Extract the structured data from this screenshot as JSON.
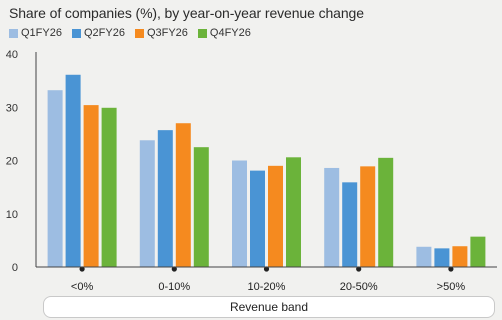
{
  "chart_data": {
    "type": "bar",
    "title": "Share of companies (%), by year-on-year revenue change",
    "xlabel": "Revenue band",
    "ylabel": "",
    "categories": [
      "<0%",
      "0-10%",
      "10-20%",
      "20-50%",
      ">50%"
    ],
    "series": [
      {
        "name": "Q1FY26",
        "color": "#9dbde2",
        "values": [
          33.2,
          23.8,
          20.0,
          18.6,
          3.8
        ]
      },
      {
        "name": "Q2FY26",
        "color": "#4a94d4",
        "values": [
          36.1,
          25.7,
          18.1,
          15.9,
          3.5
        ]
      },
      {
        "name": "Q3FY26",
        "color": "#f58a1f",
        "values": [
          30.4,
          27.0,
          19.0,
          18.9,
          3.9
        ]
      },
      {
        "name": "Q4FY26",
        "color": "#6bb33a",
        "values": [
          29.9,
          22.5,
          20.6,
          20.5,
          5.7
        ]
      }
    ],
    "yticks": [
      0,
      10,
      20,
      30,
      40
    ],
    "ylim": [
      0,
      40
    ],
    "grid": false,
    "legend_position": "top-left"
  }
}
